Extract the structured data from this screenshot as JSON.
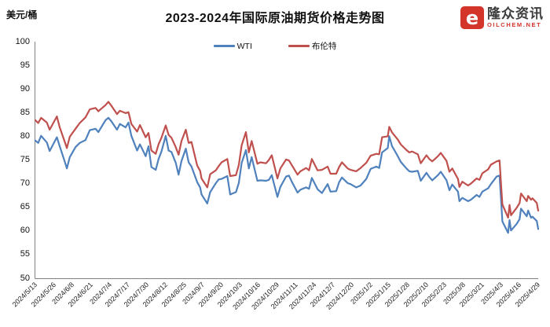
{
  "page": {
    "background": "#ffffff"
  },
  "header": {
    "title": "2023-2024年国际原油期货价格走势图",
    "unit_label": "美元/桶"
  },
  "logo": {
    "brand": "隆众资讯",
    "domain": "OILCHEM.NET",
    "mark_glyph": "e",
    "mark_color": "#d3352b"
  },
  "chart_data": {
    "type": "line",
    "title": "2023-2024年国际原油期货价格走势图",
    "ylabel": "美元/桶",
    "xlabel": "",
    "ylim": [
      50,
      100
    ],
    "ytick_step": 5,
    "grid": false,
    "legend_position": "top-center",
    "x_labels": [
      "2024/5/13",
      "2024/5/26",
      "2024/6/8",
      "2024/6/21",
      "2024/7/4",
      "2024/7/17",
      "2024/7/30",
      "2024/8/12",
      "2024/8/25",
      "2024/9/7",
      "2024/9/20",
      "2024/10/3",
      "2024/10/16",
      "2024/10/29",
      "2024/11/11",
      "2024/11/24",
      "2024/12/7",
      "2024/12/20",
      "2025/1/2",
      "2025/1/15",
      "2025/1/28",
      "2025/2/10",
      "2025/2/23",
      "2025/3/8",
      "2025/3/21",
      "2025/4/3",
      "2025/4/16",
      "2025/4/29"
    ],
    "dates": [
      "2024/5/13",
      "2024/5/15",
      "2024/5/17",
      "2024/5/21",
      "2024/5/23",
      "2024/5/28",
      "2024/5/30",
      "2024/6/3",
      "2024/6/4",
      "2024/6/6",
      "2024/6/10",
      "2024/6/13",
      "2024/6/17",
      "2024/6/20",
      "2024/6/24",
      "2024/6/26",
      "2024/7/1",
      "2024/7/3",
      "2024/7/5",
      "2024/7/9",
      "2024/7/11",
      "2024/7/15",
      "2024/7/17",
      "2024/7/19",
      "2024/7/23",
      "2024/7/25",
      "2024/7/29",
      "2024/7/31",
      "2024/8/2",
      "2024/8/5",
      "2024/8/7",
      "2024/8/9",
      "2024/8/12",
      "2024/8/14",
      "2024/8/16",
      "2024/8/19",
      "2024/8/21",
      "2024/8/23",
      "2024/8/26",
      "2024/8/28",
      "2024/8/30",
      "2024/9/3",
      "2024/9/5",
      "2024/9/6",
      "2024/9/10",
      "2024/9/12",
      "2024/9/16",
      "2024/9/18",
      "2024/9/20",
      "2024/9/24",
      "2024/9/26",
      "2024/9/30",
      "2024/10/2",
      "2024/10/4",
      "2024/10/7",
      "2024/10/9",
      "2024/10/11",
      "2024/10/15",
      "2024/10/17",
      "2024/10/21",
      "2024/10/23",
      "2024/10/25",
      "2024/10/29",
      "2024/10/31",
      "2024/11/4",
      "2024/11/6",
      "2024/11/8",
      "2024/11/12",
      "2024/11/14",
      "2024/11/18",
      "2024/11/20",
      "2024/11/22",
      "2024/11/26",
      "2024/11/29",
      "2024/12/3",
      "2024/12/5",
      "2024/12/9",
      "2024/12/11",
      "2024/12/13",
      "2024/12/17",
      "2024/12/19",
      "2024/12/23",
      "2024/12/26",
      "2024/12/30",
      "2025/1/2",
      "2025/1/6",
      "2025/1/8",
      "2025/1/10",
      "2025/1/14",
      "2025/1/15",
      "2025/1/17",
      "2025/1/21",
      "2025/1/23",
      "2025/1/27",
      "2025/1/29",
      "2025/1/31",
      "2025/2/4",
      "2025/2/6",
      "2025/2/10",
      "2025/2/12",
      "2025/2/14",
      "2025/2/18",
      "2025/2/20",
      "2025/2/24",
      "2025/2/26",
      "2025/2/28",
      "2025/3/4",
      "2025/3/5",
      "2025/3/7",
      "2025/3/11",
      "2025/3/13",
      "2025/3/17",
      "2025/3/19",
      "2025/3/21",
      "2025/3/25",
      "2025/3/27",
      "2025/3/31",
      "2025/4/2",
      "2025/4/3",
      "2025/4/4",
      "2025/4/8",
      "2025/4/9",
      "2025/4/10",
      "2025/4/14",
      "2025/4/16",
      "2025/4/17",
      "2025/4/21",
      "2025/4/22",
      "2025/4/24",
      "2025/4/25",
      "2025/4/28",
      "2025/4/29"
    ],
    "series": [
      {
        "name": "WTI",
        "color": "#4F81BD",
        "values": [
          79.1,
          78.6,
          80.1,
          78.7,
          76.9,
          79.8,
          77.9,
          74.2,
          73.2,
          75.6,
          77.7,
          78.6,
          79.2,
          81.3,
          81.6,
          80.9,
          83.4,
          83.9,
          83.2,
          81.4,
          82.6,
          81.9,
          82.9,
          80.1,
          77.0,
          78.3,
          75.8,
          77.9,
          73.5,
          72.9,
          75.2,
          76.8,
          80.1,
          77.0,
          76.7,
          74.4,
          71.9,
          74.8,
          77.4,
          74.5,
          73.6,
          70.3,
          69.2,
          67.7,
          65.8,
          68.2,
          70.1,
          70.9,
          71.0,
          71.6,
          67.7,
          68.2,
          70.1,
          74.4,
          77.1,
          73.2,
          75.6,
          70.6,
          70.7,
          70.6,
          70.8,
          71.8,
          67.2,
          69.3,
          71.5,
          71.7,
          70.4,
          68.1,
          68.7,
          69.2,
          68.9,
          71.2,
          68.8,
          68.0,
          69.9,
          68.3,
          68.4,
          70.3,
          71.3,
          70.1,
          69.9,
          69.2,
          69.6,
          71.0,
          73.1,
          73.6,
          73.3,
          76.6,
          77.5,
          80.0,
          77.9,
          75.8,
          74.6,
          73.2,
          72.6,
          72.5,
          72.7,
          70.6,
          72.3,
          71.4,
          70.7,
          71.8,
          72.5,
          70.7,
          68.6,
          69.8,
          68.3,
          66.3,
          67.0,
          66.3,
          66.6,
          67.6,
          67.2,
          68.3,
          69.0,
          69.9,
          71.5,
          71.7,
          66.9,
          62.0,
          59.6,
          62.3,
          60.1,
          61.5,
          62.5,
          64.7,
          63.1,
          64.3,
          62.8,
          63.0,
          62.1,
          60.4
        ]
      },
      {
        "name": "布伦特",
        "color": "#C0504D",
        "values": [
          83.4,
          82.8,
          83.9,
          82.9,
          81.4,
          84.2,
          81.9,
          78.4,
          77.5,
          79.9,
          81.6,
          82.8,
          84.0,
          85.7,
          86.0,
          85.3,
          86.6,
          87.3,
          86.5,
          84.7,
          85.4,
          84.9,
          85.1,
          82.6,
          81.0,
          82.4,
          79.8,
          80.7,
          77.0,
          76.3,
          78.3,
          79.7,
          82.3,
          80.3,
          79.7,
          77.7,
          76.1,
          79.0,
          81.4,
          78.6,
          78.8,
          73.8,
          72.7,
          71.1,
          69.2,
          72.0,
          72.8,
          73.7,
          74.5,
          75.2,
          71.6,
          71.8,
          73.9,
          78.1,
          80.9,
          76.6,
          79.0,
          74.2,
          74.5,
          74.3,
          75.0,
          76.0,
          71.1,
          73.2,
          75.1,
          74.9,
          73.9,
          71.9,
          72.6,
          73.3,
          72.8,
          75.2,
          72.8,
          72.9,
          73.6,
          72.1,
          72.1,
          73.5,
          74.5,
          73.2,
          72.9,
          72.6,
          73.3,
          74.4,
          75.9,
          76.3,
          76.2,
          79.8,
          80.0,
          82.0,
          80.8,
          79.3,
          78.3,
          77.1,
          76.6,
          76.8,
          76.2,
          74.3,
          76.0,
          75.2,
          74.7,
          75.8,
          76.5,
          74.8,
          72.5,
          73.2,
          71.0,
          69.3,
          70.4,
          69.6,
          70.0,
          71.1,
          70.8,
          72.2,
          73.0,
          74.0,
          74.7,
          74.9,
          70.1,
          65.6,
          62.8,
          65.5,
          63.3,
          64.9,
          65.9,
          67.9,
          66.3,
          67.4,
          66.6,
          66.9,
          65.9,
          64.3
        ]
      }
    ],
    "axis_color": "#808080"
  }
}
